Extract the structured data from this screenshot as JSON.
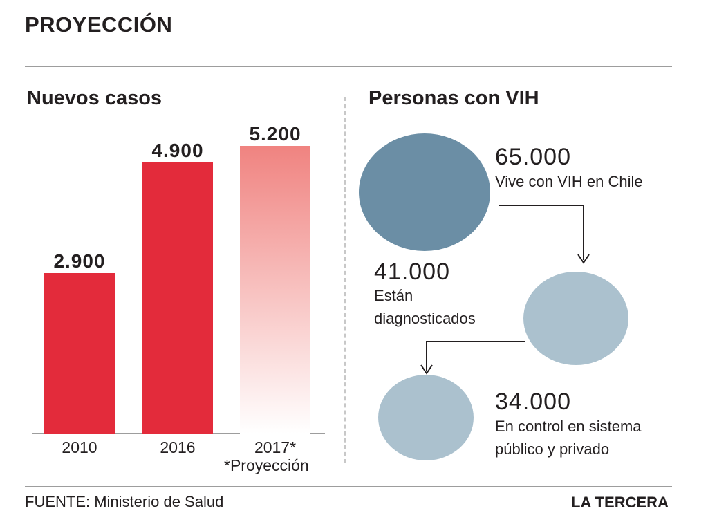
{
  "title": "PROYECCIÓN",
  "left_heading": "Nuevos casos",
  "right_heading": "Personas con VIH",
  "chart_data": {
    "type": "bar",
    "categories": [
      "2010",
      "2016",
      "2017*"
    ],
    "values": [
      2900,
      4900,
      5200
    ],
    "value_labels": [
      "2.900",
      "4.900",
      "5.200"
    ],
    "projection_index": 2,
    "note": "*Proyección",
    "colors": {
      "bar": "#e32b3b",
      "projection_top": "#f08380",
      "projection_bottom": "#ffffff"
    }
  },
  "vih": [
    {
      "value": "65.000",
      "text": [
        "Vive con VIH en Chile"
      ],
      "color": "#6b8ea5"
    },
    {
      "value": "41.000",
      "text": [
        "Están",
        "diagnosticados"
      ],
      "color": "#abc1ce"
    },
    {
      "value": "34.000",
      "text": [
        "En control en sistema",
        "público y privado"
      ],
      "color": "#abc1ce"
    }
  ],
  "footer": {
    "source": "FUENTE: Ministerio de Salud",
    "brand": "LA TERCERA"
  }
}
